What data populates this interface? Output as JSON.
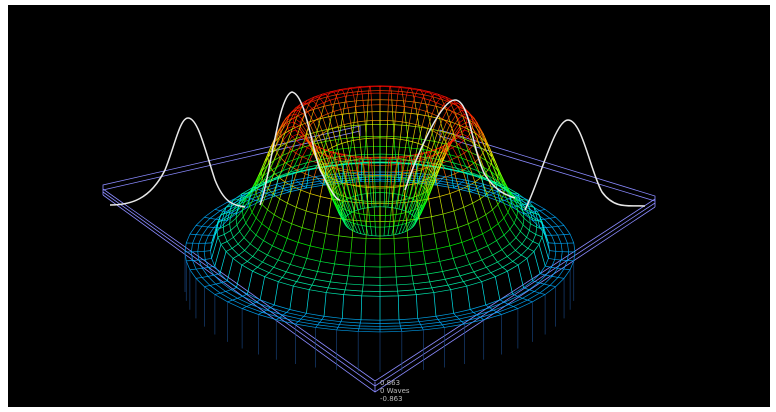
{
  "scale_labels": [
    "0.863",
    "0 Waves",
    "-0.863"
  ]
}
